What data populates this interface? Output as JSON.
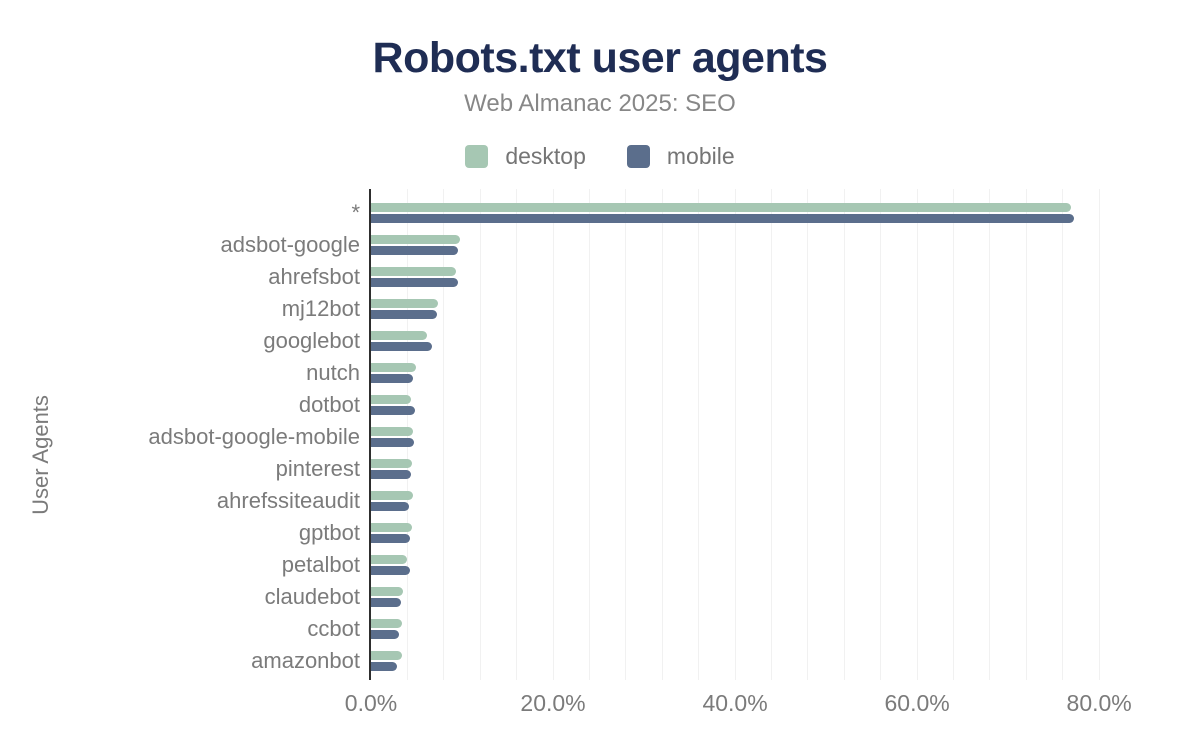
{
  "header": {
    "title": "Robots.txt user agents",
    "subtitle": "Web Almanac 2025: SEO"
  },
  "legend": [
    {
      "label": "desktop",
      "color": "#a6c7b3"
    },
    {
      "label": "mobile",
      "color": "#5b6e8c"
    }
  ],
  "colors": {
    "title": "#1f2d54",
    "subtitle": "#878787",
    "axis_text": "#7b7b7b",
    "legend_text": "#757575",
    "gridline": "#f1f1f1",
    "axis_line": "#2e2e2e",
    "desktop": "#a6c7b3",
    "mobile": "#5b6e8c"
  },
  "chart_data": {
    "type": "bar",
    "orientation": "horizontal",
    "title": "Robots.txt user agents",
    "subtitle": "Web Almanac 2025: SEO",
    "xlabel": "",
    "ylabel": "User Agents",
    "legend_position": "top",
    "grid": true,
    "grid_step_pct": 4,
    "grid_max_pct": 80,
    "xlim": [
      0,
      83.5
    ],
    "x_ticks": [
      "0.0%",
      "20.0%",
      "40.0%",
      "60.0%",
      "80.0%"
    ],
    "x_tick_values": [
      0,
      20,
      40,
      60,
      80
    ],
    "categories": [
      "*",
      "adsbot-google",
      "ahrefsbot",
      "mj12bot",
      "googlebot",
      "nutch",
      "dotbot",
      "adsbot-google-mobile",
      "pinterest",
      "ahrefssiteaudit",
      "gptbot",
      "petalbot",
      "claudebot",
      "ccbot",
      "amazonbot"
    ],
    "series": [
      {
        "name": "desktop",
        "values": [
          76.9,
          9.8,
          9.3,
          7.4,
          6.2,
          4.9,
          4.4,
          4.6,
          4.5,
          4.6,
          4.5,
          4.0,
          3.5,
          3.4,
          3.4
        ]
      },
      {
        "name": "mobile",
        "values": [
          77.2,
          9.6,
          9.6,
          7.3,
          6.7,
          4.6,
          4.8,
          4.7,
          4.4,
          4.2,
          4.3,
          4.3,
          3.3,
          3.1,
          2.9
        ]
      }
    ]
  }
}
